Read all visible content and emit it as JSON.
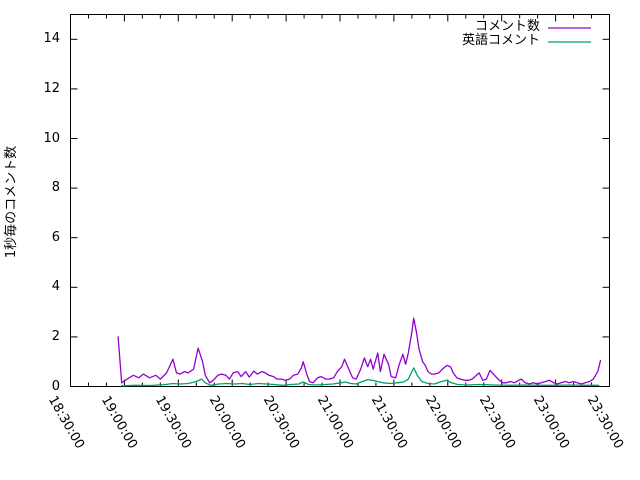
{
  "page": {
    "background": "#ffffff",
    "text_color": "#000000"
  },
  "chart_data": {
    "type": "line",
    "title": "",
    "xlabel": "",
    "ylabel": "1秒毎のコメント数",
    "grid": false,
    "legend_position": "top-right-inside",
    "border_color": "#000000",
    "x_axis": {
      "kind": "time",
      "range_minutes": [
        0,
        300
      ],
      "tick_interval_minutes": 30,
      "minor_tick_minutes": 10,
      "tick_labels": [
        "18:30:00",
        "19:00:00",
        "19:30:00",
        "20:00:00",
        "20:30:00",
        "21:00:00",
        "21:30:00",
        "22:00:00",
        "22:30:00",
        "23:00:00",
        "23:30:00"
      ],
      "label_rotation_deg": 60
    },
    "y_axis": {
      "range": [
        0,
        15
      ],
      "ticks": [
        0,
        2,
        4,
        6,
        8,
        10,
        12,
        14
      ]
    },
    "series": [
      {
        "name": "コメント数",
        "color": "#9400d3",
        "points": [
          [
            26.5,
            2.0
          ],
          [
            28.5,
            0.15
          ],
          [
            31.5,
            0.3
          ],
          [
            35,
            0.45
          ],
          [
            38,
            0.35
          ],
          [
            40.5,
            0.5
          ],
          [
            44,
            0.35
          ],
          [
            47.5,
            0.45
          ],
          [
            50,
            0.3
          ],
          [
            53.5,
            0.55
          ],
          [
            57,
            1.1
          ],
          [
            59,
            0.55
          ],
          [
            61,
            0.5
          ],
          [
            63.5,
            0.6
          ],
          [
            65.5,
            0.55
          ],
          [
            68.5,
            0.7
          ],
          [
            71,
            1.55
          ],
          [
            73.5,
            1.0
          ],
          [
            75,
            0.45
          ],
          [
            77.5,
            0.15
          ],
          [
            79.5,
            0.25
          ],
          [
            82,
            0.45
          ],
          [
            84,
            0.5
          ],
          [
            86.5,
            0.45
          ],
          [
            88.5,
            0.3
          ],
          [
            90.5,
            0.55
          ],
          [
            93,
            0.6
          ],
          [
            95,
            0.4
          ],
          [
            97.5,
            0.6
          ],
          [
            99.5,
            0.38
          ],
          [
            102,
            0.62
          ],
          [
            104,
            0.5
          ],
          [
            106.5,
            0.6
          ],
          [
            108.5,
            0.55
          ],
          [
            110.5,
            0.45
          ],
          [
            113,
            0.4
          ],
          [
            115,
            0.3
          ],
          [
            117.5,
            0.3
          ],
          [
            119.5,
            0.25
          ],
          [
            122,
            0.3
          ],
          [
            124,
            0.45
          ],
          [
            126.5,
            0.5
          ],
          [
            128.5,
            0.75
          ],
          [
            129.5,
            1.0
          ],
          [
            131.5,
            0.5
          ],
          [
            133,
            0.2
          ],
          [
            135,
            0.15
          ],
          [
            137.5,
            0.35
          ],
          [
            139.5,
            0.4
          ],
          [
            142,
            0.3
          ],
          [
            144,
            0.3
          ],
          [
            146.5,
            0.35
          ],
          [
            148.5,
            0.6
          ],
          [
            151,
            0.8
          ],
          [
            152.5,
            1.1
          ],
          [
            155.5,
            0.6
          ],
          [
            157,
            0.35
          ],
          [
            159,
            0.3
          ],
          [
            161.5,
            0.7
          ],
          [
            163.5,
            1.15
          ],
          [
            165.5,
            0.8
          ],
          [
            167,
            1.1
          ],
          [
            168.5,
            0.7
          ],
          [
            171,
            1.35
          ],
          [
            172.5,
            0.6
          ],
          [
            174.5,
            1.3
          ],
          [
            177,
            0.9
          ],
          [
            178.5,
            0.4
          ],
          [
            181,
            0.35
          ],
          [
            183,
            0.9
          ],
          [
            185,
            1.3
          ],
          [
            186.5,
            0.9
          ],
          [
            188,
            1.35
          ],
          [
            190,
            2.2
          ],
          [
            191,
            2.75
          ],
          [
            192.5,
            2.2
          ],
          [
            194,
            1.5
          ],
          [
            196,
            1.0
          ],
          [
            197.5,
            0.85
          ],
          [
            199,
            0.6
          ],
          [
            201,
            0.5
          ],
          [
            202.5,
            0.5
          ],
          [
            205,
            0.55
          ],
          [
            207,
            0.7
          ],
          [
            209.5,
            0.85
          ],
          [
            211.5,
            0.8
          ],
          [
            213,
            0.55
          ],
          [
            215,
            0.35
          ],
          [
            217,
            0.3
          ],
          [
            219.5,
            0.25
          ],
          [
            221.5,
            0.25
          ],
          [
            223.5,
            0.3
          ],
          [
            226,
            0.45
          ],
          [
            227.5,
            0.55
          ],
          [
            229.5,
            0.25
          ],
          [
            231.5,
            0.3
          ],
          [
            233.5,
            0.65
          ],
          [
            236,
            0.45
          ],
          [
            238,
            0.3
          ],
          [
            240.5,
            0.15
          ],
          [
            242.5,
            0.15
          ],
          [
            245,
            0.2
          ],
          [
            247,
            0.15
          ],
          [
            249.5,
            0.25
          ],
          [
            251,
            0.3
          ],
          [
            253,
            0.15
          ],
          [
            255.5,
            0.1
          ],
          [
            257.5,
            0.15
          ],
          [
            260,
            0.1
          ],
          [
            262,
            0.15
          ],
          [
            264.5,
            0.2
          ],
          [
            266.5,
            0.25
          ],
          [
            269,
            0.15
          ],
          [
            271,
            0.1
          ],
          [
            273,
            0.15
          ],
          [
            275.5,
            0.2
          ],
          [
            277.5,
            0.15
          ],
          [
            280,
            0.2
          ],
          [
            282,
            0.15
          ],
          [
            284.5,
            0.1
          ],
          [
            286.5,
            0.15
          ],
          [
            289,
            0.2
          ],
          [
            291,
            0.3
          ],
          [
            293.5,
            0.6
          ],
          [
            295,
            1.05
          ]
        ]
      },
      {
        "name": "英語コメント",
        "color": "#009e73",
        "points": [
          [
            28.5,
            0.03
          ],
          [
            36,
            0.05
          ],
          [
            44.5,
            0.04
          ],
          [
            53,
            0.08
          ],
          [
            57,
            0.12
          ],
          [
            61,
            0.1
          ],
          [
            65.5,
            0.12
          ],
          [
            70,
            0.2
          ],
          [
            73,
            0.3
          ],
          [
            75,
            0.15
          ],
          [
            78,
            0.05
          ],
          [
            82.5,
            0.1
          ],
          [
            87,
            0.12
          ],
          [
            91.5,
            0.1
          ],
          [
            95.5,
            0.12
          ],
          [
            100,
            0.08
          ],
          [
            104.5,
            0.12
          ],
          [
            109,
            0.1
          ],
          [
            113.5,
            0.08
          ],
          [
            118,
            0.05
          ],
          [
            122.5,
            0.08
          ],
          [
            127,
            0.1
          ],
          [
            129.5,
            0.18
          ],
          [
            132.5,
            0.08
          ],
          [
            137,
            0.06
          ],
          [
            141.5,
            0.08
          ],
          [
            146,
            0.1
          ],
          [
            150.5,
            0.15
          ],
          [
            153,
            0.18
          ],
          [
            156,
            0.12
          ],
          [
            159,
            0.1
          ],
          [
            162.5,
            0.2
          ],
          [
            165.5,
            0.28
          ],
          [
            168,
            0.25
          ],
          [
            171,
            0.2
          ],
          [
            174,
            0.15
          ],
          [
            178,
            0.12
          ],
          [
            182,
            0.15
          ],
          [
            185.5,
            0.18
          ],
          [
            188,
            0.3
          ],
          [
            191,
            0.75
          ],
          [
            193,
            0.45
          ],
          [
            195.5,
            0.2
          ],
          [
            199,
            0.12
          ],
          [
            202.5,
            0.1
          ],
          [
            206.5,
            0.2
          ],
          [
            209.5,
            0.25
          ],
          [
            212,
            0.15
          ],
          [
            215.5,
            0.08
          ],
          [
            220,
            0.06
          ],
          [
            228,
            0.08
          ],
          [
            236.5,
            0.06
          ],
          [
            245,
            0.05
          ],
          [
            253,
            0.06
          ],
          [
            261.5,
            0.05
          ],
          [
            270,
            0.05
          ],
          [
            278.5,
            0.06
          ],
          [
            286.5,
            0.05
          ],
          [
            294,
            0.05
          ]
        ]
      }
    ]
  }
}
